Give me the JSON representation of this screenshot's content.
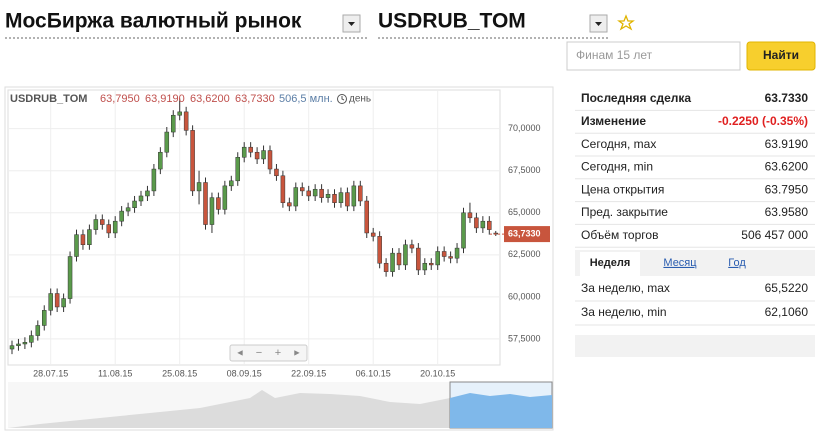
{
  "header": {
    "title": "МосБиржа валютный рынок",
    "instrument": "USDRUB_TOM"
  },
  "search": {
    "placeholder": "Финам 15 лет",
    "button": "Найти"
  },
  "chart_data": {
    "type": "candlestick",
    "title": "USDRUB_TOM",
    "quote": [
      "63,7950",
      "63,9190",
      "63,6200",
      "63,7330"
    ],
    "volume": "506,5 млн.",
    "period": "день",
    "categories": [
      null,
      null,
      null,
      null,
      null,
      null,
      "28.07.15",
      null,
      null,
      null,
      null,
      null,
      null,
      null,
      null,
      null,
      "11.08.15",
      null,
      null,
      null,
      null,
      null,
      null,
      null,
      null,
      null,
      "25.08.15",
      null,
      null,
      null,
      null,
      null,
      null,
      null,
      null,
      null,
      "08.09.15",
      null,
      null,
      null,
      null,
      null,
      null,
      null,
      null,
      null,
      "22.09.15",
      null,
      null,
      null,
      null,
      null,
      null,
      null,
      null,
      null,
      "06.10.15",
      null,
      null,
      null,
      null,
      null,
      null,
      null,
      null,
      null,
      "20.10.15",
      null,
      null,
      null,
      null,
      null,
      null,
      null,
      null,
      null
    ],
    "open": [
      56.9,
      57.1,
      57.2,
      57.3,
      57.7,
      58.3,
      59.2,
      60.2,
      59.4,
      59.9,
      62.4,
      63.7,
      63.1,
      64.0,
      64.6,
      64.3,
      63.8,
      64.5,
      65.1,
      65.3,
      65.7,
      66.0,
      66.3,
      67.6,
      68.6,
      69.8,
      70.8,
      71.0,
      69.9,
      66.3,
      66.8,
      64.3,
      65.9,
      65.2,
      66.6,
      66.9,
      68.3,
      68.9,
      68.6,
      68.2,
      68.7,
      67.6,
      67.2,
      65.6,
      65.4,
      66.5,
      66.3,
      66.0,
      66.4,
      65.9,
      66.1,
      65.6,
      66.2,
      65.4,
      66.6,
      65.7,
      63.8,
      63.6,
      62.0,
      61.5,
      62.6,
      61.9,
      63.1,
      62.9,
      61.6,
      62.0,
      61.9,
      62.7,
      62.4,
      62.3,
      62.9,
      65.0,
      64.7,
      64.1,
      64.5,
      63.795
    ],
    "high": [
      57.4,
      57.5,
      57.6,
      58.0,
      58.6,
      59.5,
      60.5,
      60.5,
      60.2,
      62.7,
      64.0,
      64.0,
      64.3,
      64.9,
      64.9,
      64.6,
      64.8,
      65.4,
      65.6,
      66.0,
      66.3,
      66.6,
      67.9,
      68.9,
      70.1,
      71.1,
      71.8,
      71.3,
      70.2,
      67.5,
      67.1,
      66.2,
      66.2,
      66.9,
      67.2,
      68.6,
      69.2,
      69.2,
      68.9,
      69.0,
      69.0,
      67.9,
      67.5,
      65.9,
      66.8,
      66.8,
      66.6,
      66.7,
      66.7,
      66.4,
      66.4,
      66.5,
      66.5,
      66.9,
      66.9,
      66.0,
      64.1,
      63.9,
      62.3,
      62.9,
      62.9,
      63.4,
      63.4,
      63.2,
      62.3,
      62.3,
      63.0,
      63.0,
      62.7,
      63.2,
      65.3,
      65.6,
      65.0,
      64.8,
      64.8,
      63.919
    ],
    "low": [
      56.6,
      56.8,
      56.9,
      57.0,
      57.4,
      58.0,
      58.9,
      59.1,
      59.1,
      59.6,
      62.1,
      62.8,
      62.8,
      63.7,
      64.0,
      63.5,
      63.5,
      64.2,
      64.8,
      65.0,
      65.4,
      65.7,
      66.0,
      67.3,
      68.3,
      69.5,
      70.5,
      69.6,
      66.0,
      65.5,
      64.0,
      63.8,
      64.9,
      64.9,
      66.3,
      66.6,
      68.0,
      68.3,
      67.9,
      67.9,
      67.3,
      66.9,
      65.3,
      65.1,
      65.1,
      66.0,
      65.7,
      65.7,
      65.6,
      65.6,
      65.3,
      65.3,
      65.1,
      65.1,
      65.4,
      63.5,
      63.3,
      61.7,
      61.2,
      61.2,
      61.6,
      61.6,
      62.6,
      61.3,
      61.3,
      61.6,
      61.6,
      62.1,
      62.0,
      62.0,
      62.6,
      64.4,
      63.8,
      63.8,
      63.7,
      63.62
    ],
    "close": [
      57.1,
      57.2,
      57.3,
      57.7,
      58.3,
      59.2,
      60.2,
      59.4,
      59.9,
      62.4,
      63.7,
      63.1,
      64.0,
      64.6,
      64.3,
      63.8,
      64.5,
      65.1,
      65.3,
      65.7,
      66.0,
      66.3,
      67.6,
      68.6,
      69.8,
      70.8,
      71.0,
      69.9,
      66.3,
      66.8,
      64.3,
      65.9,
      65.2,
      66.6,
      66.9,
      68.3,
      68.9,
      68.6,
      68.2,
      68.7,
      67.6,
      67.2,
      65.6,
      65.4,
      66.5,
      66.3,
      66.0,
      66.4,
      65.9,
      66.1,
      65.6,
      66.2,
      65.4,
      66.6,
      65.7,
      63.8,
      63.6,
      62.0,
      61.5,
      62.6,
      61.9,
      63.1,
      62.9,
      61.6,
      62.0,
      61.9,
      62.7,
      62.4,
      62.3,
      62.9,
      65.0,
      64.7,
      64.1,
      64.5,
      64.0,
      63.733
    ],
    "up_color": "#5a9a4b",
    "down_color": "#c8553d",
    "ylim": [
      55.95,
      72.3
    ],
    "yticks": [
      {
        "value": 57.5,
        "label": "57,5000"
      },
      {
        "value": 60,
        "label": "60,0000"
      },
      {
        "value": 62.5,
        "label": "62,5000"
      },
      {
        "value": 65,
        "label": "65,0000"
      },
      {
        "value": 67.5,
        "label": "67,5000"
      },
      {
        "value": 70,
        "label": "70,0000"
      }
    ],
    "last_price": {
      "value": 63.733,
      "label": "63,7330"
    },
    "grid": true
  },
  "stats": {
    "rows": [
      [
        "Последняя сделка",
        "63.7330"
      ],
      [
        "Изменение",
        "-0.2250 (-0.35%)"
      ],
      [
        "Сегодня, max",
        "63.9190"
      ],
      [
        "Сегодня, min",
        "63.6200"
      ],
      [
        "Цена открытия",
        "63.7950"
      ],
      [
        "Пред. закрытие",
        "63.9580"
      ],
      [
        "Объём торгов",
        "506 457 000"
      ]
    ]
  },
  "tabs": [
    "Неделя",
    "Месяц",
    "Год"
  ],
  "week": {
    "rows": [
      [
        "За неделю, max",
        "65,5220"
      ],
      [
        "За неделю, min",
        "62,1060"
      ]
    ]
  }
}
